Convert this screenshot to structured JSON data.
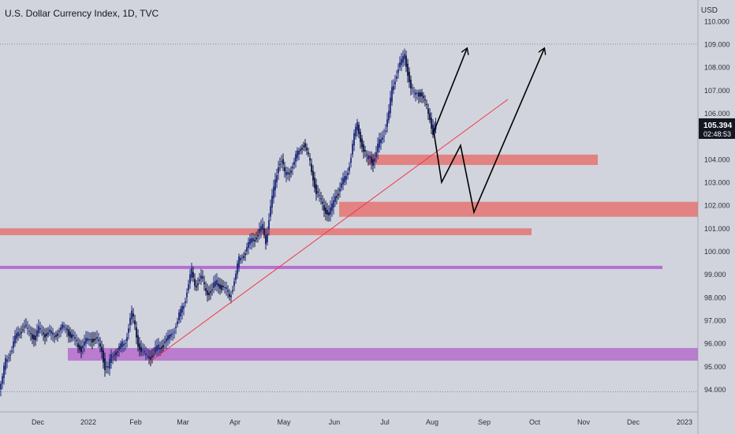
{
  "chart_data": {
    "type": "candlestick",
    "title": "U.S. Dollar Currency Index, 1D, TVC",
    "currency": "USD",
    "y_range": [
      93.6,
      109.5
    ],
    "y_ticks": [
      "94.000",
      "95.000",
      "96.000",
      "97.000",
      "98.000",
      "99.000",
      "100.000",
      "101.000",
      "102.000",
      "103.000",
      "104.000",
      "105.000",
      "106.000",
      "107.000",
      "108.000",
      "109.000",
      "110.000"
    ],
    "x_ticks": [
      "Dec",
      "2022",
      "Feb",
      "Mar",
      "Apr",
      "May",
      "Jun",
      "Jul",
      "Aug",
      "Sep",
      "Oct",
      "Nov",
      "Dec",
      "2023"
    ],
    "price_label": "105.394",
    "countdown": "02:48:53",
    "price_tag_value": 105.4,
    "price_path": [
      [
        0,
        94.0
      ],
      [
        4,
        94.5
      ],
      [
        8,
        95.2
      ],
      [
        12,
        95.5
      ],
      [
        16,
        95.8
      ],
      [
        20,
        96.2
      ],
      [
        24,
        96.4
      ],
      [
        28,
        96.6
      ],
      [
        32,
        96.8
      ],
      [
        36,
        96.5
      ],
      [
        40,
        96.4
      ],
      [
        46,
        96.3
      ],
      [
        50,
        96.6
      ],
      [
        56,
        96.4
      ],
      [
        62,
        96.5
      ],
      [
        68,
        96.3
      ],
      [
        74,
        96.5
      ],
      [
        80,
        96.7
      ],
      [
        86,
        96.6
      ],
      [
        92,
        96.3
      ],
      [
        98,
        96.0
      ],
      [
        104,
        95.8
      ],
      [
        110,
        96.1
      ],
      [
        116,
        96.2
      ],
      [
        122,
        96.2
      ],
      [
        126,
        96.0
      ],
      [
        130,
        95.7
      ],
      [
        134,
        95.0
      ],
      [
        138,
        94.9
      ],
      [
        142,
        95.4
      ],
      [
        146,
        95.6
      ],
      [
        150,
        95.7
      ],
      [
        156,
        95.9
      ],
      [
        160,
        96.1
      ],
      [
        164,
        96.8
      ],
      [
        168,
        97.3
      ],
      [
        172,
        96.7
      ],
      [
        176,
        96.0
      ],
      [
        180,
        95.7
      ],
      [
        184,
        95.5
      ],
      [
        190,
        95.4
      ],
      [
        196,
        95.6
      ],
      [
        202,
        95.8
      ],
      [
        208,
        96.0
      ],
      [
        214,
        96.2
      ],
      [
        220,
        96.5
      ],
      [
        226,
        97.0
      ],
      [
        232,
        97.5
      ],
      [
        236,
        98.0
      ],
      [
        240,
        98.6
      ],
      [
        244,
        99.1
      ],
      [
        248,
        98.5
      ],
      [
        252,
        98.7
      ],
      [
        256,
        98.9
      ],
      [
        260,
        98.4
      ],
      [
        264,
        98.2
      ],
      [
        270,
        98.4
      ],
      [
        276,
        98.6
      ],
      [
        282,
        98.5
      ],
      [
        288,
        98.3
      ],
      [
        292,
        98.0
      ],
      [
        296,
        98.5
      ],
      [
        300,
        99.0
      ],
      [
        304,
        99.6
      ],
      [
        308,
        99.8
      ],
      [
        312,
        100.0
      ],
      [
        316,
        100.3
      ],
      [
        322,
        100.5
      ],
      [
        328,
        100.8
      ],
      [
        334,
        101.0
      ],
      [
        338,
        100.4
      ],
      [
        342,
        101.5
      ],
      [
        346,
        102.3
      ],
      [
        350,
        103.0
      ],
      [
        354,
        103.8
      ],
      [
        358,
        104.0
      ],
      [
        362,
        103.3
      ],
      [
        366,
        103.4
      ],
      [
        370,
        103.6
      ],
      [
        374,
        103.9
      ],
      [
        378,
        104.2
      ],
      [
        382,
        104.5
      ],
      [
        386,
        104.7
      ],
      [
        390,
        104.3
      ],
      [
        394,
        103.8
      ],
      [
        398,
        103.2
      ],
      [
        402,
        102.6
      ],
      [
        406,
        102.3
      ],
      [
        410,
        102.0
      ],
      [
        414,
        101.8
      ],
      [
        418,
        101.6
      ],
      [
        422,
        101.9
      ],
      [
        426,
        102.4
      ],
      [
        430,
        102.6
      ],
      [
        434,
        102.9
      ],
      [
        438,
        103.1
      ],
      [
        442,
        103.5
      ],
      [
        446,
        104.2
      ],
      [
        450,
        105.0
      ],
      [
        454,
        105.5
      ],
      [
        458,
        104.9
      ],
      [
        462,
        104.4
      ],
      [
        466,
        104.0
      ],
      [
        470,
        104.1
      ],
      [
        474,
        103.9
      ],
      [
        478,
        104.3
      ],
      [
        482,
        104.7
      ],
      [
        486,
        105.0
      ],
      [
        490,
        105.4
      ],
      [
        494,
        106.0
      ],
      [
        498,
        107.0
      ],
      [
        502,
        107.5
      ],
      [
        506,
        108.0
      ],
      [
        510,
        108.2
      ],
      [
        514,
        108.5
      ],
      [
        518,
        107.8
      ],
      [
        522,
        107.1
      ],
      [
        526,
        106.8
      ],
      [
        530,
        106.9
      ],
      [
        534,
        106.9
      ],
      [
        538,
        106.6
      ],
      [
        542,
        106.2
      ],
      [
        546,
        105.8
      ],
      [
        550,
        105.2
      ],
      [
        553,
        105.4
      ]
    ],
    "annotations": {
      "red_zones": [
        {
          "y_low": 103.75,
          "y_high": 104.2,
          "x_from": 466,
          "x_to": 758
        },
        {
          "y_low": 101.5,
          "y_high": 102.15,
          "x_from": 430,
          "x_to": 885
        },
        {
          "y_low": 100.7,
          "y_high": 101.0,
          "x_from": 0,
          "x_to": 674
        }
      ],
      "purple_zones": [
        {
          "y_low": 95.25,
          "y_high": 95.8,
          "x_from": 86,
          "x_to": 885
        }
      ],
      "purple_lines": [
        {
          "y": 99.3,
          "x_from": 0,
          "x_to": 840
        }
      ],
      "dotted_lines": [
        109.0,
        93.9
      ],
      "trendline": {
        "from": [
          190,
          95.2
        ],
        "to": [
          644,
          106.6
        ]
      },
      "projections": [
        {
          "points": [
            [
              550,
              105.2
            ],
            [
              560,
              103.0
            ],
            [
              584,
              104.6
            ],
            [
              601,
              101.7
            ],
            [
              690,
              108.8
            ]
          ]
        },
        {
          "points": [
            [
              550,
              105.2
            ],
            [
              592,
              108.8
            ]
          ]
        }
      ]
    },
    "colors": {
      "up": "#1f2a7a",
      "down": "#0e1545",
      "background": "#d1d4dc",
      "axis_text": "#2a2e39",
      "red_zone": "#e57373",
      "purple_zone": "#b672cd",
      "purple_line": "#b264d4",
      "trendline": "#f23645",
      "price_tag": "#131722"
    }
  }
}
